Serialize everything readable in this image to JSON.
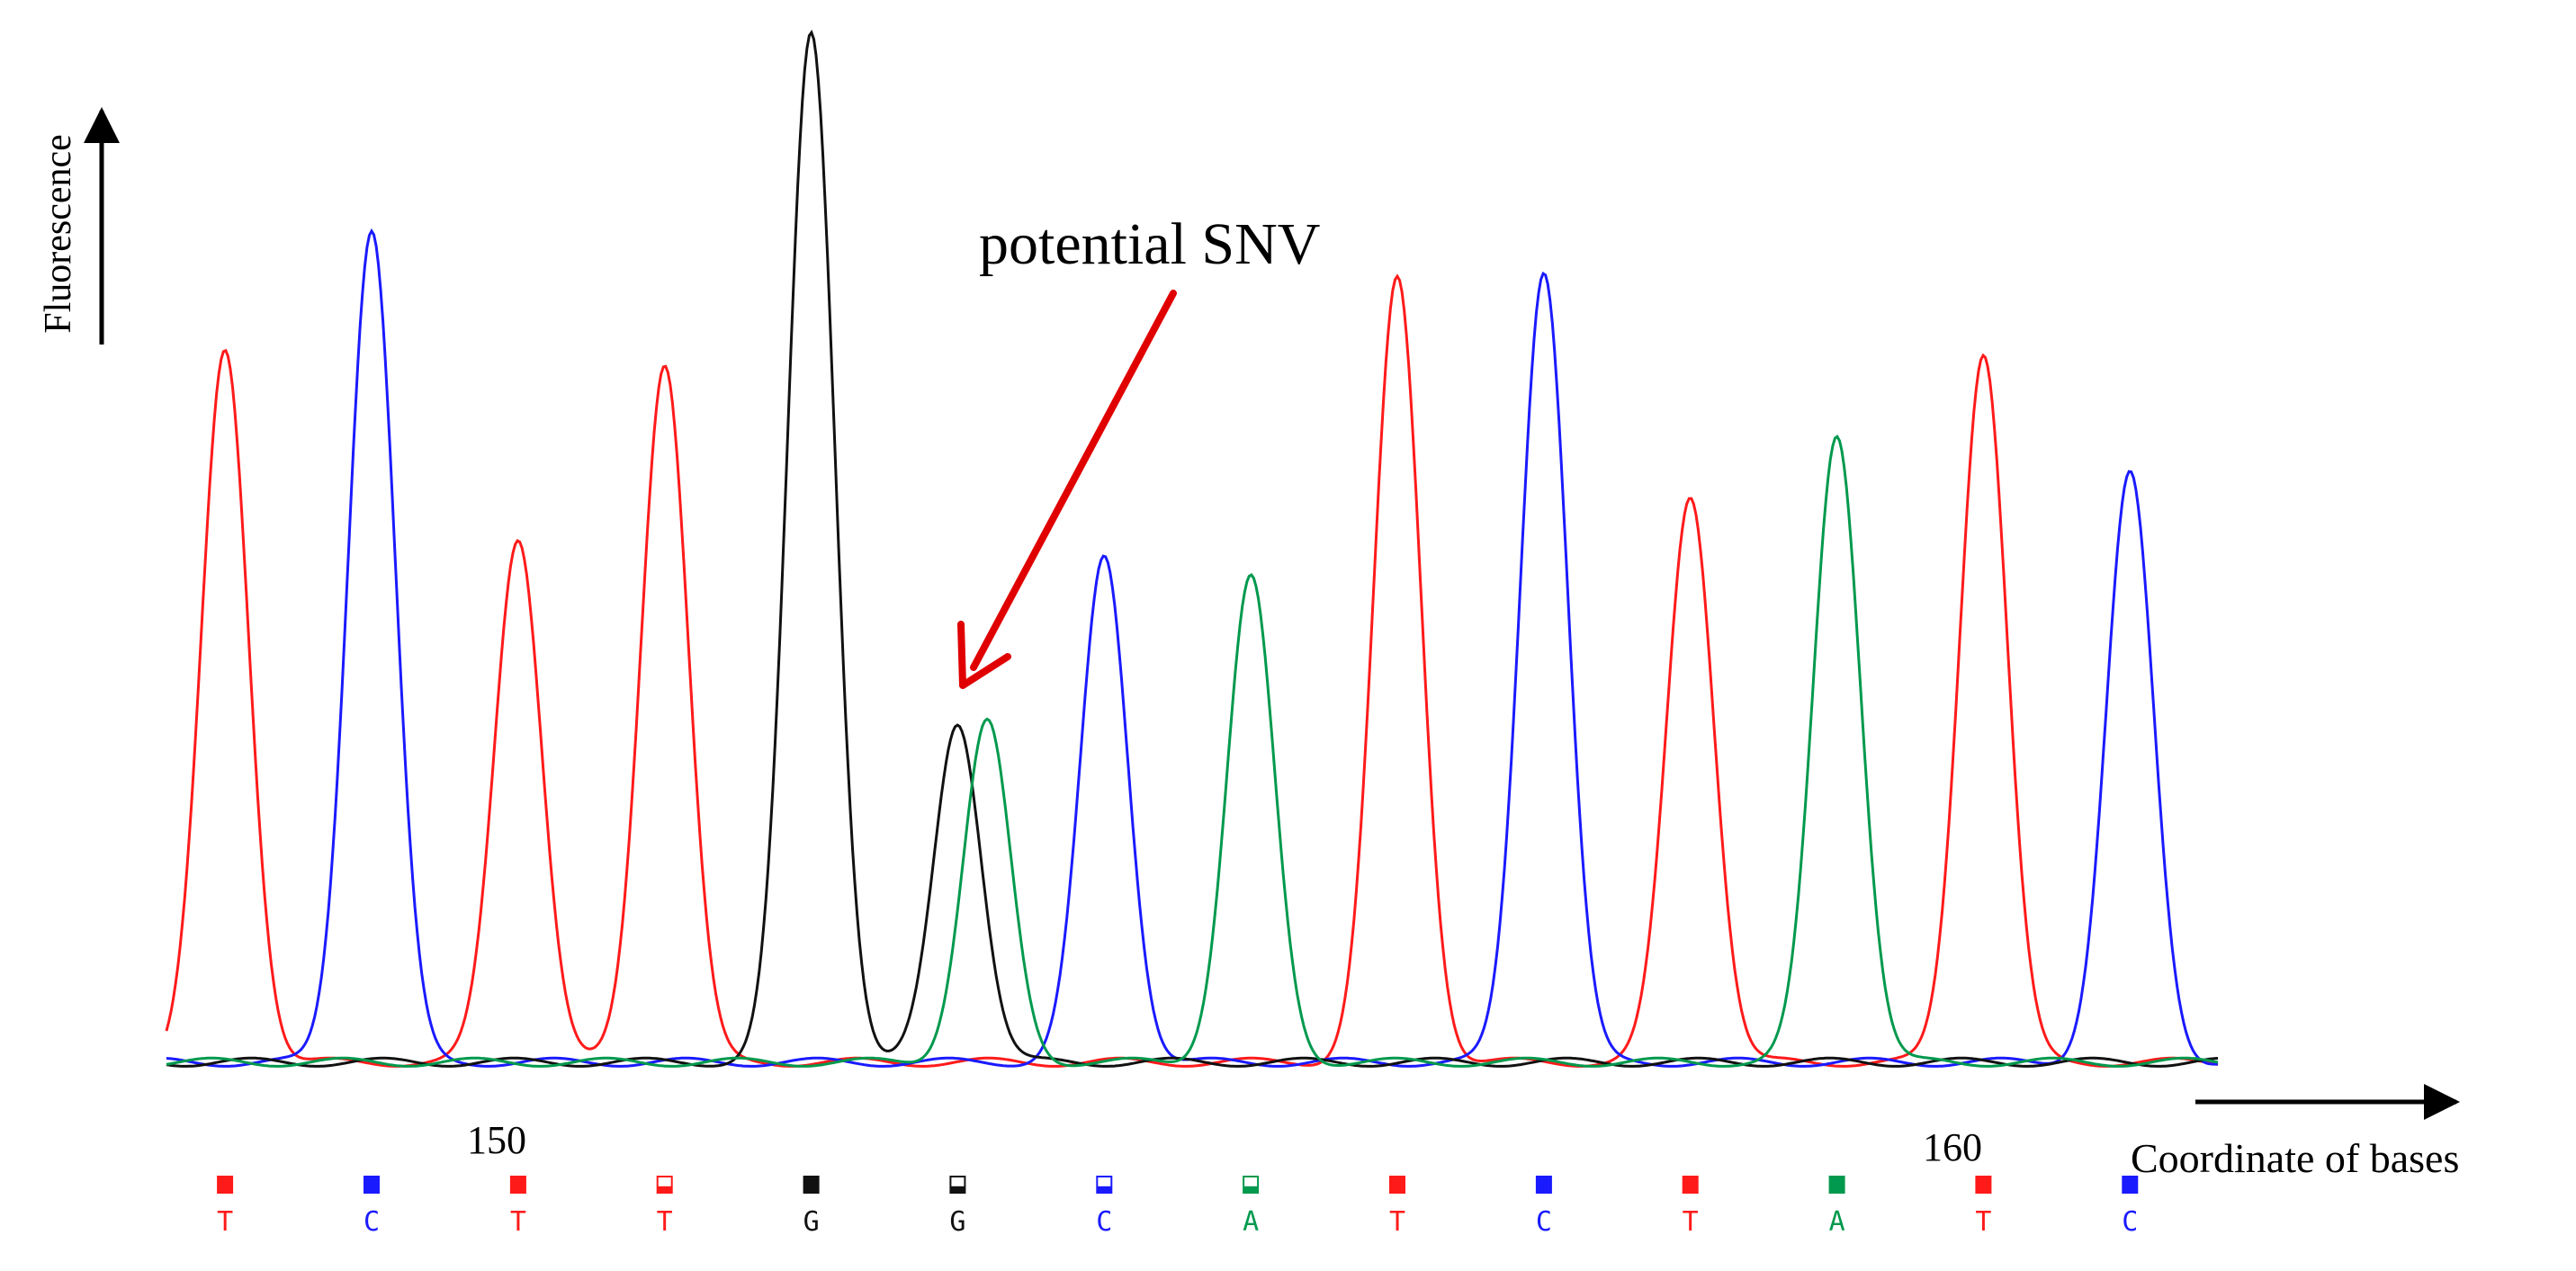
{
  "chart_data": {
    "type": "line",
    "subtype": "sanger-sequencing-chromatogram",
    "ylabel": "Fluorescence",
    "xlabel": "Coordinate of bases",
    "annotation": {
      "text": "potential SNV",
      "target_base_index": 5
    },
    "colors": {
      "T": "#ff1a1a",
      "C": "#1a1aff",
      "G": "#111111",
      "A": "#00994d"
    },
    "position_labels": [
      {
        "text": "150",
        "base_index": 2
      },
      {
        "text": "160",
        "base_index": 12
      }
    ],
    "xlim": [
      0.0,
      14.0
    ],
    "ylim": [
      0.0,
      1.0
    ],
    "series": [
      {
        "name": "T",
        "channel": "T",
        "color": "#ff1a1a",
        "peaks": [
          {
            "x": 0.4,
            "h": 0.69
          },
          {
            "x": 2.4,
            "h": 0.51
          },
          {
            "x": 3.4,
            "h": 0.68
          },
          {
            "x": 8.4,
            "h": 0.76
          },
          {
            "x": 10.4,
            "h": 0.55
          },
          {
            "x": 12.4,
            "h": 0.69
          }
        ]
      },
      {
        "name": "C",
        "channel": "C",
        "color": "#1a1aff",
        "peaks": [
          {
            "x": 1.4,
            "h": 0.81
          },
          {
            "x": 6.4,
            "h": 0.49
          },
          {
            "x": 9.4,
            "h": 0.77
          },
          {
            "x": 13.4,
            "h": 0.57
          }
        ]
      },
      {
        "name": "G",
        "channel": "G",
        "color": "#111111",
        "peaks": [
          {
            "x": 4.4,
            "h": 1.0
          },
          {
            "x": 5.4,
            "h": 0.33
          }
        ]
      },
      {
        "name": "A",
        "channel": "A",
        "color": "#00994d",
        "peaks": [
          {
            "x": 5.6,
            "h": 0.33
          },
          {
            "x": 7.4,
            "h": 0.47
          },
          {
            "x": 11.4,
            "h": 0.61
          }
        ]
      }
    ],
    "bases": [
      {
        "letter": "T",
        "quality": 1.0
      },
      {
        "letter": "C",
        "quality": 1.0
      },
      {
        "letter": "T",
        "quality": 1.0
      },
      {
        "letter": "T",
        "quality": 0.4
      },
      {
        "letter": "G",
        "quality": 1.0
      },
      {
        "letter": "G",
        "quality": 0.4
      },
      {
        "letter": "C",
        "quality": 0.4
      },
      {
        "letter": "A",
        "quality": 0.4
      },
      {
        "letter": "T",
        "quality": 1.0
      },
      {
        "letter": "C",
        "quality": 1.0
      },
      {
        "letter": "T",
        "quality": 1.0
      },
      {
        "letter": "A",
        "quality": 1.0
      },
      {
        "letter": "T",
        "quality": 1.0
      },
      {
        "letter": "C",
        "quality": 1.0
      }
    ]
  }
}
